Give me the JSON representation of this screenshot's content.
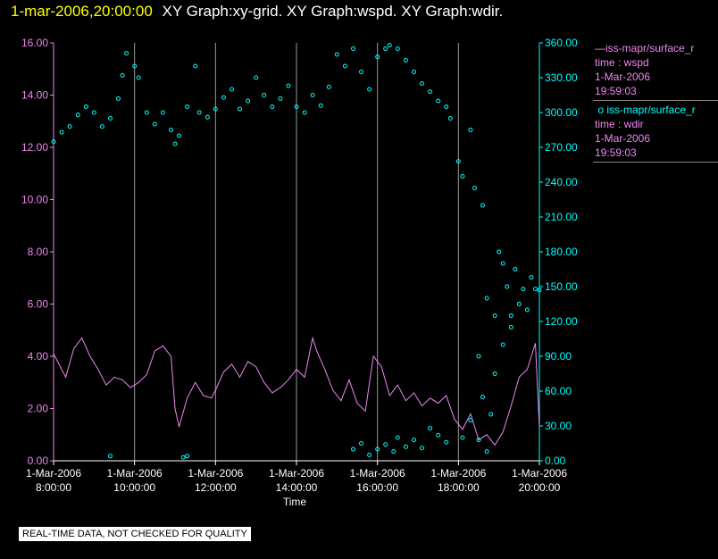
{
  "header": {
    "datetime": "1-mar-2006,20:00:00",
    "title": "XY Graph:xy-grid.  XY Graph:wspd.  XY Graph:wdir."
  },
  "legend": {
    "wspd_label": "iss-mapr/surface_r",
    "wspd_line2": "time : wspd",
    "wspd_date": "1-Mar-2006",
    "wspd_time": "19:59:03",
    "wdir_label": "iss-mapr/surface_r",
    "wdir_line2": "time : wdir",
    "wdir_date": "1-Mar-2006",
    "wdir_time": "19:59:03"
  },
  "disclaimer": "REAL-TIME DATA, NOT CHECKED FOR QUALITY",
  "colors": {
    "header_date": "#ffff00",
    "wspd": "#ee88ee",
    "wdir": "#00ffff",
    "grid": "#9a9a9a",
    "axis_text": "#ffffff"
  },
  "chart_data": {
    "type": "line+scatter",
    "xlabel": "Time",
    "x_ticks": [
      {
        "hour": 8,
        "date": "1-Mar-2006",
        "time": "8:00:00"
      },
      {
        "hour": 10,
        "date": "1-Mar-2006",
        "time": "10:00:00"
      },
      {
        "hour": 12,
        "date": "1-Mar-2006",
        "time": "12:00:00"
      },
      {
        "hour": 14,
        "date": "1-Mar-2006",
        "time": "14:00:00"
      },
      {
        "hour": 16,
        "date": "1-Mar-2006",
        "time": "16:00:00"
      },
      {
        "hour": 18,
        "date": "1-Mar-2006",
        "time": "18:00:00"
      },
      {
        "hour": 20,
        "date": "1-Mar-2006",
        "time": "20:00:00"
      }
    ],
    "xlim": [
      8,
      20
    ],
    "y_left": {
      "name": "wspd",
      "lim": [
        0,
        16
      ],
      "ticks": [
        "0.00",
        "2.00",
        "4.00",
        "6.00",
        "8.00",
        "10.00",
        "12.00",
        "14.00",
        "16.00"
      ]
    },
    "y_right": {
      "name": "wdir",
      "lim": [
        0,
        360
      ],
      "ticks": [
        "0.00",
        "30.00",
        "60.00",
        "90.00",
        "120.00",
        "150.00",
        "180.00",
        "210.00",
        "240.00",
        "270.00",
        "300.00",
        "330.00",
        "360.00"
      ]
    },
    "series": [
      {
        "name": "wspd",
        "style": "line",
        "axis": "left",
        "points": [
          [
            8.0,
            4.1
          ],
          [
            8.3,
            3.2
          ],
          [
            8.5,
            4.3
          ],
          [
            8.7,
            4.7
          ],
          [
            8.9,
            4.0
          ],
          [
            9.1,
            3.5
          ],
          [
            9.3,
            2.9
          ],
          [
            9.5,
            3.2
          ],
          [
            9.7,
            3.1
          ],
          [
            9.9,
            2.8
          ],
          [
            10.1,
            3.0
          ],
          [
            10.3,
            3.3
          ],
          [
            10.5,
            4.2
          ],
          [
            10.7,
            4.4
          ],
          [
            10.9,
            4.0
          ],
          [
            11.0,
            2.0
          ],
          [
            11.1,
            1.3
          ],
          [
            11.3,
            2.4
          ],
          [
            11.5,
            3.0
          ],
          [
            11.7,
            2.5
          ],
          [
            11.9,
            2.4
          ],
          [
            12.0,
            2.7
          ],
          [
            12.2,
            3.4
          ],
          [
            12.4,
            3.7
          ],
          [
            12.6,
            3.2
          ],
          [
            12.8,
            3.8
          ],
          [
            13.0,
            3.6
          ],
          [
            13.2,
            3.0
          ],
          [
            13.4,
            2.6
          ],
          [
            13.6,
            2.8
          ],
          [
            13.8,
            3.1
          ],
          [
            14.0,
            3.5
          ],
          [
            14.2,
            3.2
          ],
          [
            14.4,
            4.7
          ],
          [
            14.5,
            4.2
          ],
          [
            14.7,
            3.5
          ],
          [
            14.9,
            2.7
          ],
          [
            15.1,
            2.3
          ],
          [
            15.3,
            3.1
          ],
          [
            15.5,
            2.2
          ],
          [
            15.7,
            1.9
          ],
          [
            15.9,
            4.0
          ],
          [
            16.1,
            3.6
          ],
          [
            16.3,
            2.5
          ],
          [
            16.5,
            2.9
          ],
          [
            16.7,
            2.3
          ],
          [
            16.9,
            2.6
          ],
          [
            17.1,
            2.1
          ],
          [
            17.3,
            2.4
          ],
          [
            17.5,
            2.2
          ],
          [
            17.7,
            2.5
          ],
          [
            17.9,
            1.6
          ],
          [
            18.1,
            1.2
          ],
          [
            18.3,
            1.8
          ],
          [
            18.5,
            0.8
          ],
          [
            18.7,
            1.0
          ],
          [
            18.9,
            0.6
          ],
          [
            19.1,
            1.1
          ],
          [
            19.3,
            2.1
          ],
          [
            19.5,
            3.2
          ],
          [
            19.7,
            3.5
          ],
          [
            19.9,
            4.5
          ],
          [
            20.0,
            1.3
          ]
        ]
      },
      {
        "name": "wdir",
        "style": "scatter",
        "axis": "right",
        "points": [
          [
            8.0,
            275
          ],
          [
            8.2,
            283
          ],
          [
            8.4,
            288
          ],
          [
            8.6,
            298
          ],
          [
            8.8,
            305
          ],
          [
            9.0,
            300
          ],
          [
            9.2,
            288
          ],
          [
            9.4,
            295
          ],
          [
            9.6,
            312
          ],
          [
            9.7,
            332
          ],
          [
            9.8,
            351
          ],
          [
            10.0,
            340
          ],
          [
            10.1,
            330
          ],
          [
            10.3,
            300
          ],
          [
            10.5,
            290
          ],
          [
            10.7,
            300
          ],
          [
            10.9,
            285
          ],
          [
            11.0,
            273
          ],
          [
            11.1,
            280
          ],
          [
            11.3,
            305
          ],
          [
            11.5,
            340
          ],
          [
            11.6,
            300
          ],
          [
            11.8,
            296
          ],
          [
            12.0,
            303
          ],
          [
            12.2,
            313
          ],
          [
            12.4,
            320
          ],
          [
            12.6,
            303
          ],
          [
            12.8,
            310
          ],
          [
            13.0,
            330
          ],
          [
            13.2,
            315
          ],
          [
            13.4,
            305
          ],
          [
            13.6,
            312
          ],
          [
            13.8,
            323
          ],
          [
            14.0,
            305
          ],
          [
            14.2,
            300
          ],
          [
            14.4,
            315
          ],
          [
            14.6,
            306
          ],
          [
            14.8,
            322
          ],
          [
            15.0,
            350
          ],
          [
            15.2,
            340
          ],
          [
            15.4,
            355
          ],
          [
            15.6,
            335
          ],
          [
            15.8,
            320
          ],
          [
            16.0,
            348
          ],
          [
            16.2,
            355
          ],
          [
            16.3,
            358
          ],
          [
            16.5,
            355
          ],
          [
            16.7,
            345
          ],
          [
            16.9,
            335
          ],
          [
            17.1,
            325
          ],
          [
            17.3,
            318
          ],
          [
            17.5,
            310
          ],
          [
            17.7,
            305
          ],
          [
            17.8,
            295
          ],
          [
            18.0,
            258
          ],
          [
            18.1,
            245
          ],
          [
            18.3,
            285
          ],
          [
            18.4,
            235
          ],
          [
            18.6,
            220
          ],
          [
            18.7,
            140
          ],
          [
            18.9,
            125
          ],
          [
            19.0,
            180
          ],
          [
            19.1,
            170
          ],
          [
            19.2,
            150
          ],
          [
            19.3,
            125
          ],
          [
            19.4,
            165
          ],
          [
            19.5,
            135
          ],
          [
            19.6,
            148
          ],
          [
            19.7,
            130
          ],
          [
            19.8,
            158
          ],
          [
            19.9,
            148
          ],
          [
            20.0,
            147
          ],
          [
            16.0,
            10
          ],
          [
            16.2,
            14
          ],
          [
            16.4,
            8
          ],
          [
            16.5,
            20
          ],
          [
            16.7,
            12
          ],
          [
            16.9,
            18
          ],
          [
            17.1,
            11
          ],
          [
            17.3,
            28
          ],
          [
            17.5,
            22
          ],
          [
            17.7,
            16
          ],
          [
            18.1,
            20
          ],
          [
            18.3,
            35
          ],
          [
            18.5,
            18
          ],
          [
            18.7,
            8
          ],
          [
            18.8,
            40
          ],
          [
            15.4,
            10
          ],
          [
            15.6,
            15
          ],
          [
            15.8,
            5
          ],
          [
            9.4,
            4
          ],
          [
            11.2,
            3
          ],
          [
            11.3,
            4
          ],
          [
            18.6,
            55
          ],
          [
            18.5,
            90
          ],
          [
            18.9,
            75
          ],
          [
            19.1,
            100
          ],
          [
            19.3,
            115
          ]
        ]
      }
    ]
  }
}
